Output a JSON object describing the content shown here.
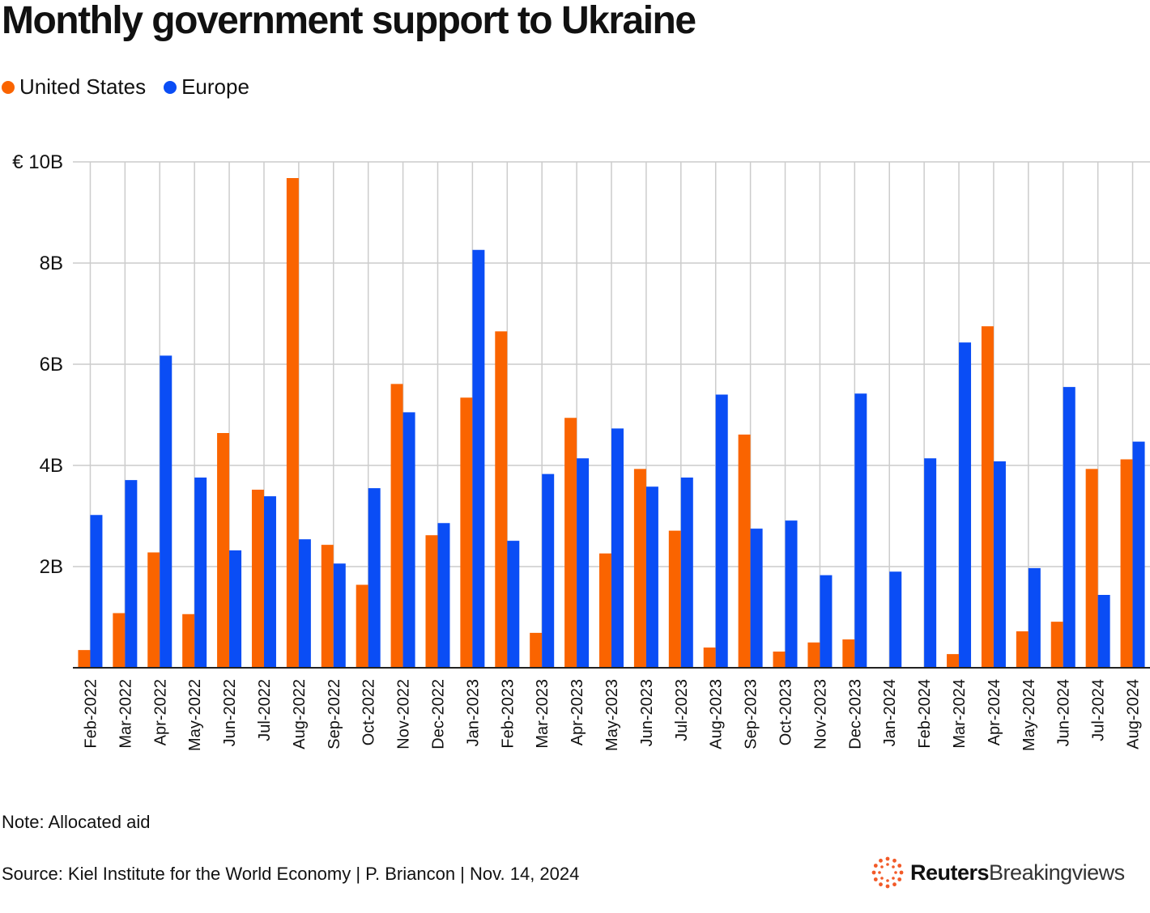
{
  "title": "Monthly government support to Ukraine",
  "legend": {
    "us": "United States",
    "eu": "Europe"
  },
  "colors": {
    "us": "#fa6400",
    "eu": "#0a4df5",
    "grid": "#cccccc"
  },
  "note": "Note: Allocated aid",
  "source": "Source: Kiel Institute for the World Economy | P. Briancon | Nov. 14, 2024",
  "brand": {
    "strong": "Reuters",
    "light": "Breakingviews"
  },
  "chart_data": {
    "type": "bar",
    "title": "Monthly government support to Ukraine",
    "xlabel": "",
    "ylabel": "",
    "ylim": [
      0,
      10
    ],
    "y_ticks": [
      {
        "value": 10,
        "label": "€ 10B"
      },
      {
        "value": 8,
        "label": "8B"
      },
      {
        "value": 6,
        "label": "6B"
      },
      {
        "value": 4,
        "label": "4B"
      },
      {
        "value": 2,
        "label": "2B"
      }
    ],
    "grid": true,
    "legend_position": "top-left",
    "categories": [
      "Feb-2022",
      "Mar-2022",
      "Apr-2022",
      "May-2022",
      "Jun-2022",
      "Jul-2022",
      "Aug-2022",
      "Sep-2022",
      "Oct-2022",
      "Nov-2022",
      "Dec-2022",
      "Jan-2023",
      "Feb-2023",
      "Mar-2023",
      "Apr-2023",
      "May-2023",
      "Jun-2023",
      "Jul-2023",
      "Aug-2023",
      "Sep-2023",
      "Oct-2023",
      "Nov-2023",
      "Dec-2023",
      "Jan-2024",
      "Feb-2024",
      "Mar-2024",
      "Apr-2024",
      "May-2024",
      "Jun-2024",
      "Jul-2024",
      "Aug-2024"
    ],
    "series": [
      {
        "name": "United States",
        "values": [
          0.35,
          1.08,
          2.28,
          1.06,
          4.64,
          3.52,
          9.68,
          2.43,
          1.64,
          5.61,
          2.62,
          5.34,
          6.65,
          0.69,
          4.94,
          2.26,
          3.93,
          2.71,
          0.4,
          4.61,
          0.32,
          0.5,
          0.56,
          0.0,
          0.0,
          0.27,
          6.75,
          0.72,
          0.91,
          3.93,
          4.12
        ]
      },
      {
        "name": "Europe",
        "values": [
          3.02,
          3.71,
          6.17,
          3.76,
          2.32,
          3.39,
          2.54,
          2.06,
          3.55,
          5.05,
          2.86,
          8.26,
          2.51,
          3.83,
          4.14,
          4.73,
          3.58,
          3.76,
          5.4,
          2.75,
          2.91,
          1.83,
          5.42,
          1.9,
          4.14,
          6.43,
          4.08,
          1.97,
          5.55,
          1.44,
          4.47
        ]
      }
    ]
  }
}
